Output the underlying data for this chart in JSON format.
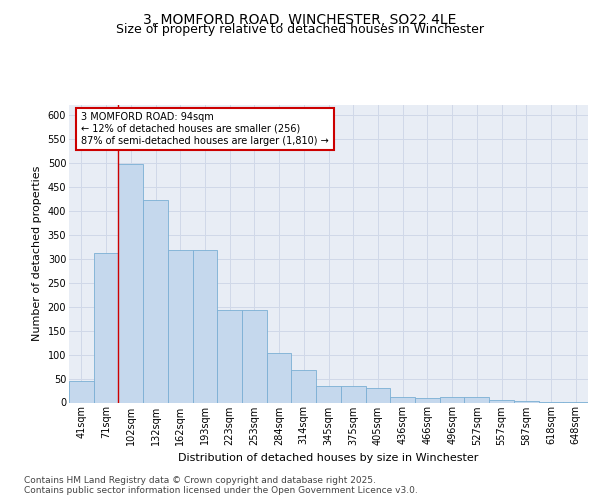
{
  "title_line1": "3, MOMFORD ROAD, WINCHESTER, SO22 4LE",
  "title_line2": "Size of property relative to detached houses in Winchester",
  "xlabel": "Distribution of detached houses by size in Winchester",
  "ylabel": "Number of detached properties",
  "categories": [
    "41sqm",
    "71sqm",
    "102sqm",
    "132sqm",
    "162sqm",
    "193sqm",
    "223sqm",
    "253sqm",
    "284sqm",
    "314sqm",
    "345sqm",
    "375sqm",
    "405sqm",
    "436sqm",
    "466sqm",
    "496sqm",
    "527sqm",
    "557sqm",
    "587sqm",
    "618sqm",
    "648sqm"
  ],
  "values": [
    45,
    312,
    497,
    422,
    318,
    318,
    193,
    193,
    103,
    68,
    35,
    35,
    30,
    12,
    10,
    12,
    12,
    6,
    3,
    2,
    2
  ],
  "bar_color": "#c5d8ed",
  "bar_edge_color": "#7bafd4",
  "grid_color": "#d0d8e8",
  "bg_color": "#e8edf5",
  "annotation_text": "3 MOMFORD ROAD: 94sqm\n← 12% of detached houses are smaller (256)\n87% of semi-detached houses are larger (1,810) →",
  "annotation_box_color": "#ffffff",
  "annotation_border_color": "#cc0000",
  "red_line_index": 1.5,
  "ylim": [
    0,
    620
  ],
  "yticks": [
    0,
    50,
    100,
    150,
    200,
    250,
    300,
    350,
    400,
    450,
    500,
    550,
    600
  ],
  "footer": "Contains HM Land Registry data © Crown copyright and database right 2025.\nContains public sector information licensed under the Open Government Licence v3.0.",
  "title_fontsize": 10,
  "subtitle_fontsize": 9,
  "axis_label_fontsize": 8,
  "tick_fontsize": 7,
  "annotation_fontsize": 7,
  "footer_fontsize": 6.5
}
